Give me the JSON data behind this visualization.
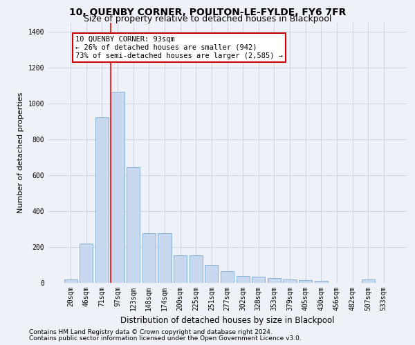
{
  "title": "10, QUENBY CORNER, POULTON-LE-FYLDE, FY6 7FR",
  "subtitle": "Size of property relative to detached houses in Blackpool",
  "xlabel": "Distribution of detached houses by size in Blackpool",
  "ylabel": "Number of detached properties",
  "categories": [
    "20sqm",
    "46sqm",
    "71sqm",
    "97sqm",
    "123sqm",
    "148sqm",
    "174sqm",
    "200sqm",
    "225sqm",
    "251sqm",
    "277sqm",
    "302sqm",
    "328sqm",
    "353sqm",
    "379sqm",
    "405sqm",
    "430sqm",
    "456sqm",
    "482sqm",
    "507sqm",
    "533sqm"
  ],
  "values": [
    20,
    220,
    920,
    1065,
    645,
    275,
    275,
    155,
    155,
    100,
    65,
    40,
    35,
    25,
    20,
    15,
    13,
    0,
    0,
    20,
    0
  ],
  "bar_color": "#c8d9ef",
  "bar_edge_color": "#7aaad0",
  "background_color": "#eef2f8",
  "red_line_index": 3,
  "annotation_text": "10 QUENBY CORNER: 93sqm\n← 26% of detached houses are smaller (942)\n73% of semi-detached houses are larger (2,585) →",
  "annotation_box_color": "#ffffff",
  "annotation_box_edge": "#cc0000",
  "ylim": [
    0,
    1450
  ],
  "yticks": [
    0,
    200,
    400,
    600,
    800,
    1000,
    1200,
    1400
  ],
  "footer_line1": "Contains HM Land Registry data © Crown copyright and database right 2024.",
  "footer_line2": "Contains public sector information licensed under the Open Government Licence v3.0.",
  "title_fontsize": 10,
  "subtitle_fontsize": 9,
  "xlabel_fontsize": 8.5,
  "ylabel_fontsize": 8,
  "tick_fontsize": 7,
  "annotation_fontsize": 7.5,
  "footer_fontsize": 6.5
}
